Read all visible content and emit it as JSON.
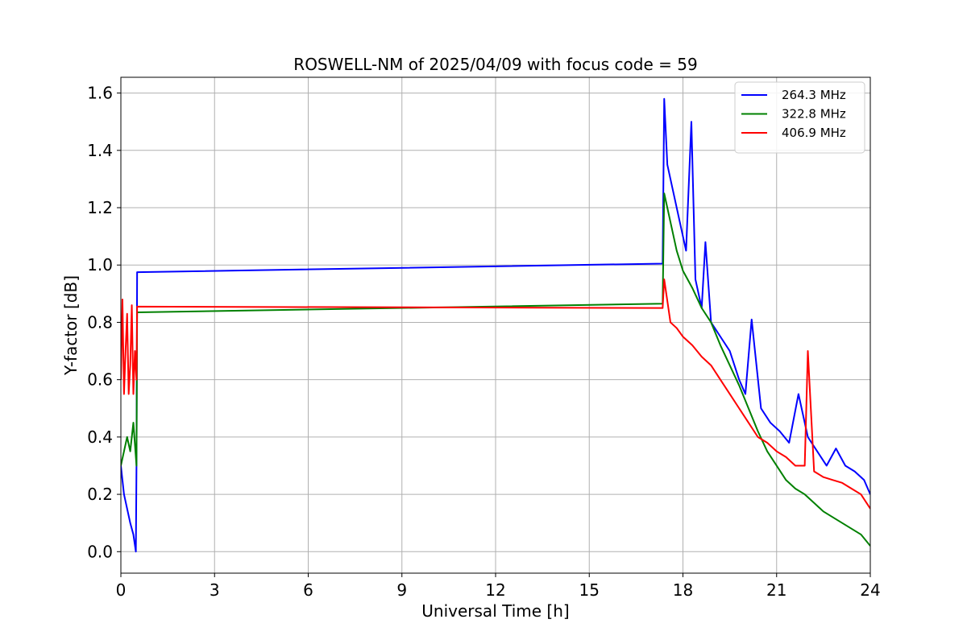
{
  "chart_data": {
    "type": "line",
    "title": "ROSWELL-NM of 2025/04/09 with focus code = 59",
    "xlabel": "Universal Time [h]",
    "ylabel": "Y-factor [dB]",
    "xlim": [
      0,
      24
    ],
    "ylim": [
      -0.075,
      1.655
    ],
    "xticks": [
      0,
      3,
      6,
      9,
      12,
      15,
      18,
      21,
      24
    ],
    "xtick_labels": [
      "0",
      "3",
      "6",
      "9",
      "12",
      "15",
      "18",
      "21",
      "24"
    ],
    "yticks": [
      0.0,
      0.2,
      0.4,
      0.6,
      0.8,
      1.0,
      1.2,
      1.4,
      1.6
    ],
    "ytick_labels": [
      "0.0",
      "0.2",
      "0.4",
      "0.6",
      "0.8",
      "1.0",
      "1.2",
      "1.4",
      "1.6"
    ],
    "grid": true,
    "legend_position": "top-right",
    "series": [
      {
        "name": "264.3 MHz",
        "color": "#0000ff",
        "x": [
          0.0,
          0.1,
          0.2,
          0.3,
          0.4,
          0.48,
          0.5,
          0.52,
          17.35,
          17.4,
          17.5,
          17.7,
          17.9,
          18.1,
          18.27,
          18.4,
          18.6,
          18.72,
          18.9,
          19.2,
          19.5,
          19.8,
          20.0,
          20.2,
          20.5,
          20.8,
          21.1,
          21.4,
          21.7,
          22.0,
          22.3,
          22.6,
          22.9,
          23.2,
          23.5,
          23.8,
          24.0
        ],
        "y": [
          0.3,
          0.2,
          0.15,
          0.1,
          0.06,
          0.0,
          0.3,
          0.975,
          1.005,
          1.58,
          1.35,
          1.25,
          1.15,
          1.05,
          1.5,
          0.95,
          0.85,
          1.08,
          0.8,
          0.75,
          0.7,
          0.6,
          0.55,
          0.81,
          0.5,
          0.45,
          0.42,
          0.38,
          0.55,
          0.4,
          0.35,
          0.3,
          0.36,
          0.3,
          0.28,
          0.25,
          0.2
        ]
      },
      {
        "name": "322.8 MHz",
        "color": "#008000",
        "x": [
          0.0,
          0.1,
          0.2,
          0.3,
          0.4,
          0.5,
          0.52,
          17.35,
          17.4,
          17.6,
          17.8,
          18.0,
          18.3,
          18.6,
          18.9,
          19.2,
          19.5,
          19.8,
          20.1,
          20.4,
          20.7,
          21.0,
          21.3,
          21.6,
          21.9,
          22.2,
          22.5,
          22.8,
          23.1,
          23.4,
          23.7,
          24.0
        ],
        "y": [
          0.3,
          0.35,
          0.4,
          0.35,
          0.45,
          0.3,
          0.835,
          0.865,
          1.25,
          1.15,
          1.05,
          0.98,
          0.92,
          0.85,
          0.8,
          0.72,
          0.65,
          0.58,
          0.5,
          0.42,
          0.35,
          0.3,
          0.25,
          0.22,
          0.2,
          0.17,
          0.14,
          0.12,
          0.1,
          0.08,
          0.06,
          0.02
        ]
      },
      {
        "name": "406.9 MHz",
        "color": "#ff0000",
        "x": [
          0.0,
          0.05,
          0.1,
          0.15,
          0.2,
          0.25,
          0.3,
          0.35,
          0.4,
          0.45,
          0.5,
          0.52,
          17.35,
          17.4,
          17.6,
          17.8,
          18.0,
          18.3,
          18.6,
          18.9,
          19.2,
          19.5,
          19.8,
          20.1,
          20.4,
          20.7,
          21.0,
          21.3,
          21.6,
          21.9,
          22.0,
          22.2,
          22.5,
          22.8,
          23.1,
          23.4,
          23.7,
          24.0
        ],
        "y": [
          0.6,
          0.88,
          0.55,
          0.7,
          0.83,
          0.55,
          0.65,
          0.86,
          0.55,
          0.7,
          0.6,
          0.855,
          0.85,
          0.95,
          0.8,
          0.78,
          0.75,
          0.72,
          0.68,
          0.65,
          0.6,
          0.55,
          0.5,
          0.45,
          0.4,
          0.38,
          0.35,
          0.33,
          0.3,
          0.3,
          0.7,
          0.28,
          0.26,
          0.25,
          0.24,
          0.22,
          0.2,
          0.15
        ]
      }
    ]
  }
}
